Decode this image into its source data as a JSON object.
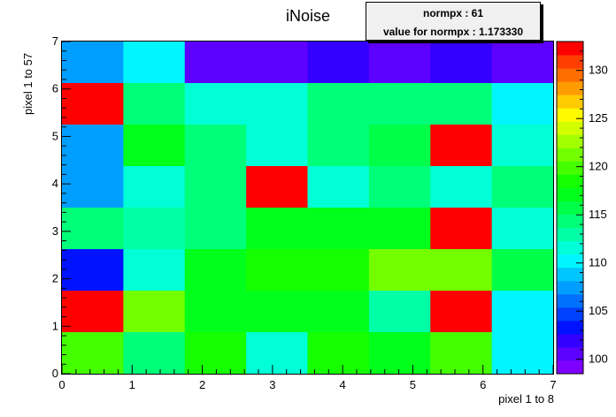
{
  "chart_data": {
    "type": "heatmap",
    "title": "iNoise",
    "xlabel": "pixel 1 to 8",
    "ylabel": "pixel 1 to 57",
    "xlim": [
      0,
      7
    ],
    "ylim": [
      0,
      7
    ],
    "x_ticks": [
      "0",
      "1",
      "2",
      "3",
      "4",
      "5",
      "6",
      "7"
    ],
    "y_ticks": [
      "0",
      "1",
      "2",
      "3",
      "4",
      "5",
      "6",
      "7"
    ],
    "nx": 8,
    "ny": 8,
    "z_range": [
      98.5,
      133
    ],
    "z_ticks": [
      "100",
      "105",
      "110",
      "115",
      "120",
      "125",
      "130"
    ],
    "palette": [
      "#7f00ff",
      "#5c00ff",
      "#3300ff",
      "#0012ff",
      "#0041ff",
      "#0070ff",
      "#009fff",
      "#00c6ff",
      "#00f6ff",
      "#00ffd6",
      "#00ffa7",
      "#00ff78",
      "#00ff49",
      "#00ff1a",
      "#15ff00",
      "#44ff00",
      "#73ff00",
      "#a2ff00",
      "#d1ff00",
      "#fffa00",
      "#ffcb00",
      "#ff9c00",
      "#ff6d00",
      "#ff3e00",
      "#ff0000"
    ],
    "z_rows_top_to_bottom": [
      [
        107.5,
        110.5,
        100,
        100,
        101.5,
        100,
        101.5,
        100
      ],
      [
        133,
        114.5,
        111.5,
        111.5,
        114,
        114,
        114,
        110.5
      ],
      [
        107.5,
        116.5,
        114,
        111.5,
        114,
        116,
        133,
        111.5
      ],
      [
        107.5,
        111.5,
        114,
        133,
        111.5,
        114,
        111.5,
        114
      ],
      [
        115,
        113.5,
        114.5,
        117,
        117,
        117,
        133,
        111.5
      ],
      [
        104,
        111.5,
        117.5,
        118,
        118,
        121,
        121,
        116
      ],
      [
        133,
        121.5,
        117.5,
        117.5,
        117.5,
        113.5,
        133,
        110.5
      ],
      [
        120.5,
        115,
        118,
        111.5,
        118,
        117.5,
        120.5,
        110.5
      ]
    ],
    "grid": false,
    "legend": "color scale at right"
  },
  "stats": {
    "line1": "normpx : 61",
    "line2": "value for normpx : 1.173330"
  }
}
